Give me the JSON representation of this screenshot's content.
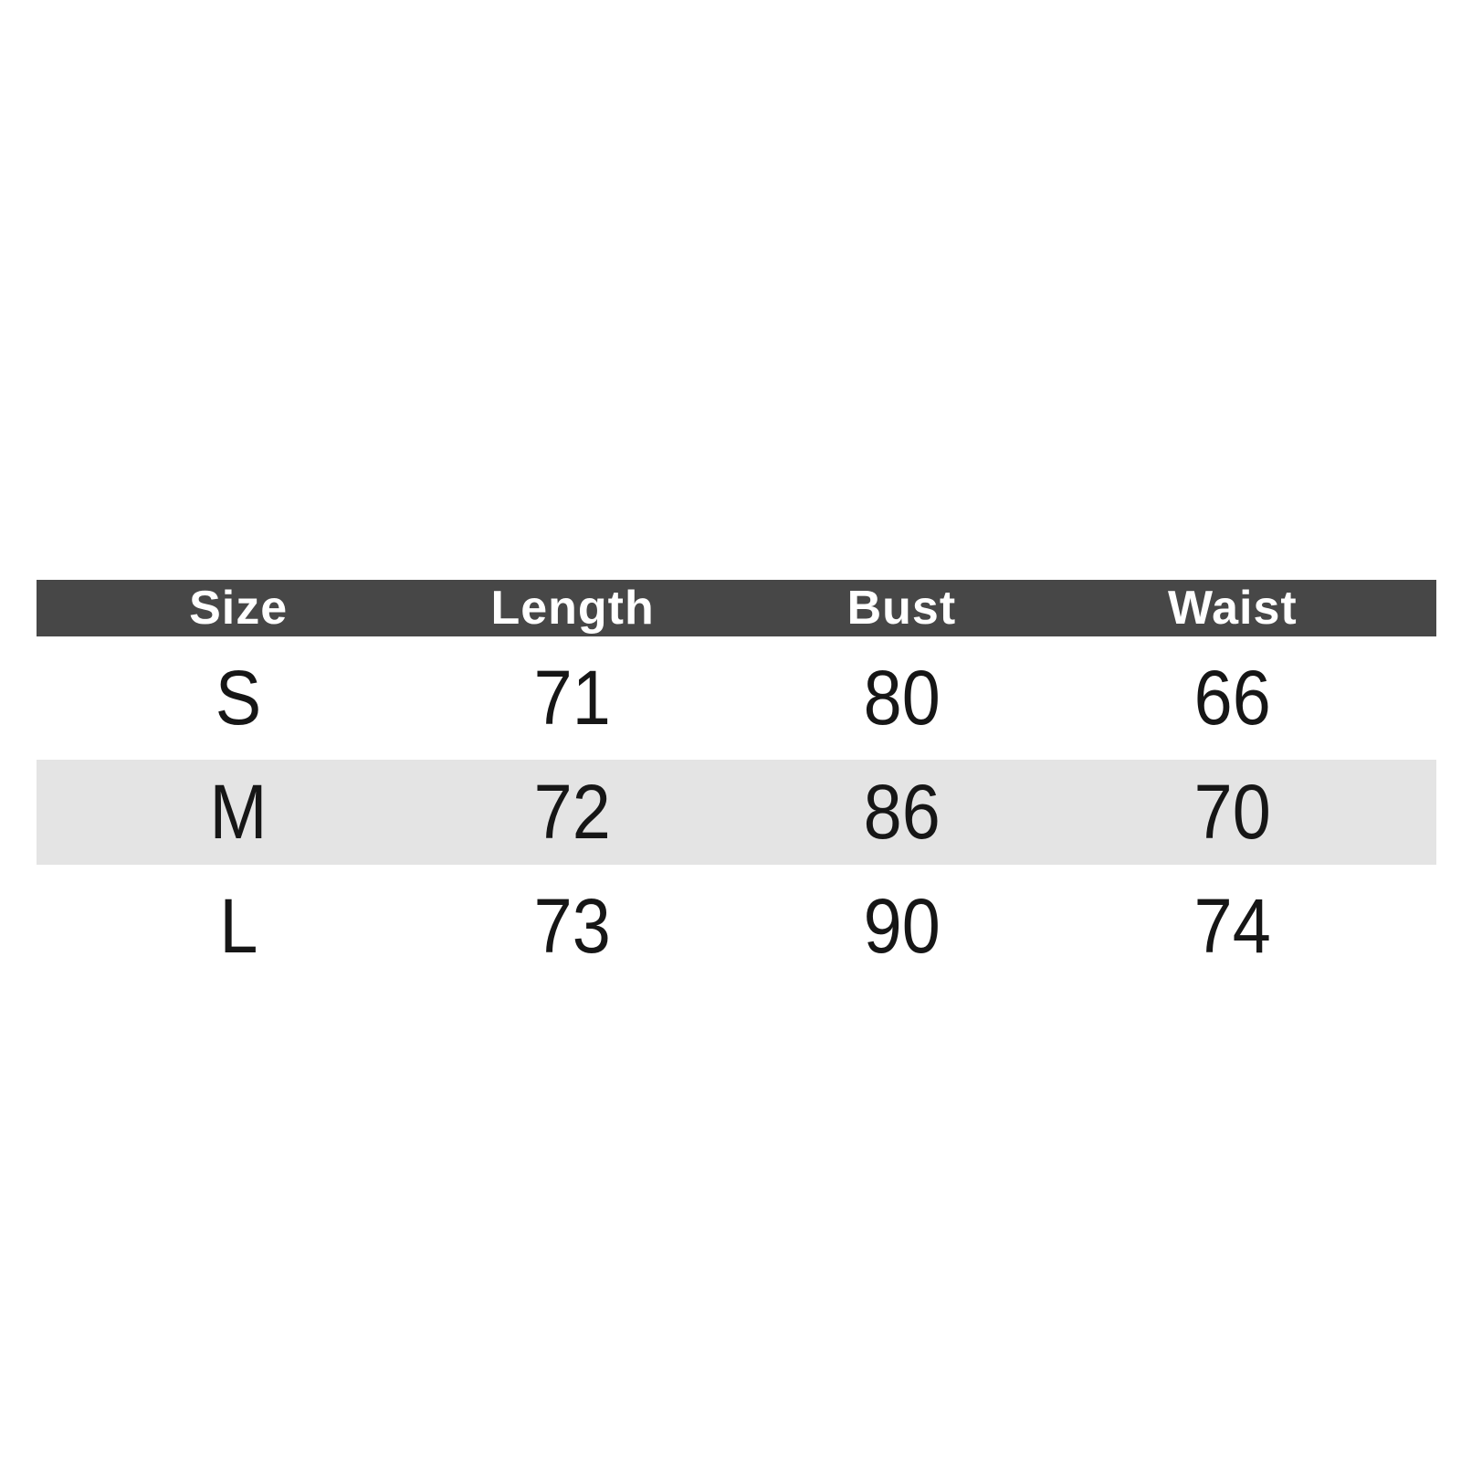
{
  "size_chart": {
    "columns": [
      "Size",
      "Length",
      "Bust",
      "Waist"
    ],
    "rows": [
      {
        "size": "S",
        "length": "71",
        "bust": "80",
        "waist": "66"
      },
      {
        "size": "M",
        "length": "72",
        "bust": "86",
        "waist": "70"
      },
      {
        "size": "L",
        "length": "73",
        "bust": "90",
        "waist": "74"
      }
    ],
    "colors": {
      "header_bg": "#474747",
      "header_text": "#ffffff",
      "row_alt_bg": "#e4e4e4",
      "body_text": "#161616",
      "page_bg": "#ffffff"
    }
  },
  "chart_data": {
    "type": "table",
    "columns": [
      "Size",
      "Length",
      "Bust",
      "Waist"
    ],
    "rows": [
      [
        "S",
        71,
        80,
        66
      ],
      [
        "M",
        72,
        86,
        70
      ],
      [
        "L",
        73,
        90,
        74
      ]
    ],
    "layout_hints": {
      "header_style": "dark-gray band, white bold text",
      "zebra_striping": "row M shaded light gray",
      "alignment": "all cells center-aligned"
    }
  }
}
